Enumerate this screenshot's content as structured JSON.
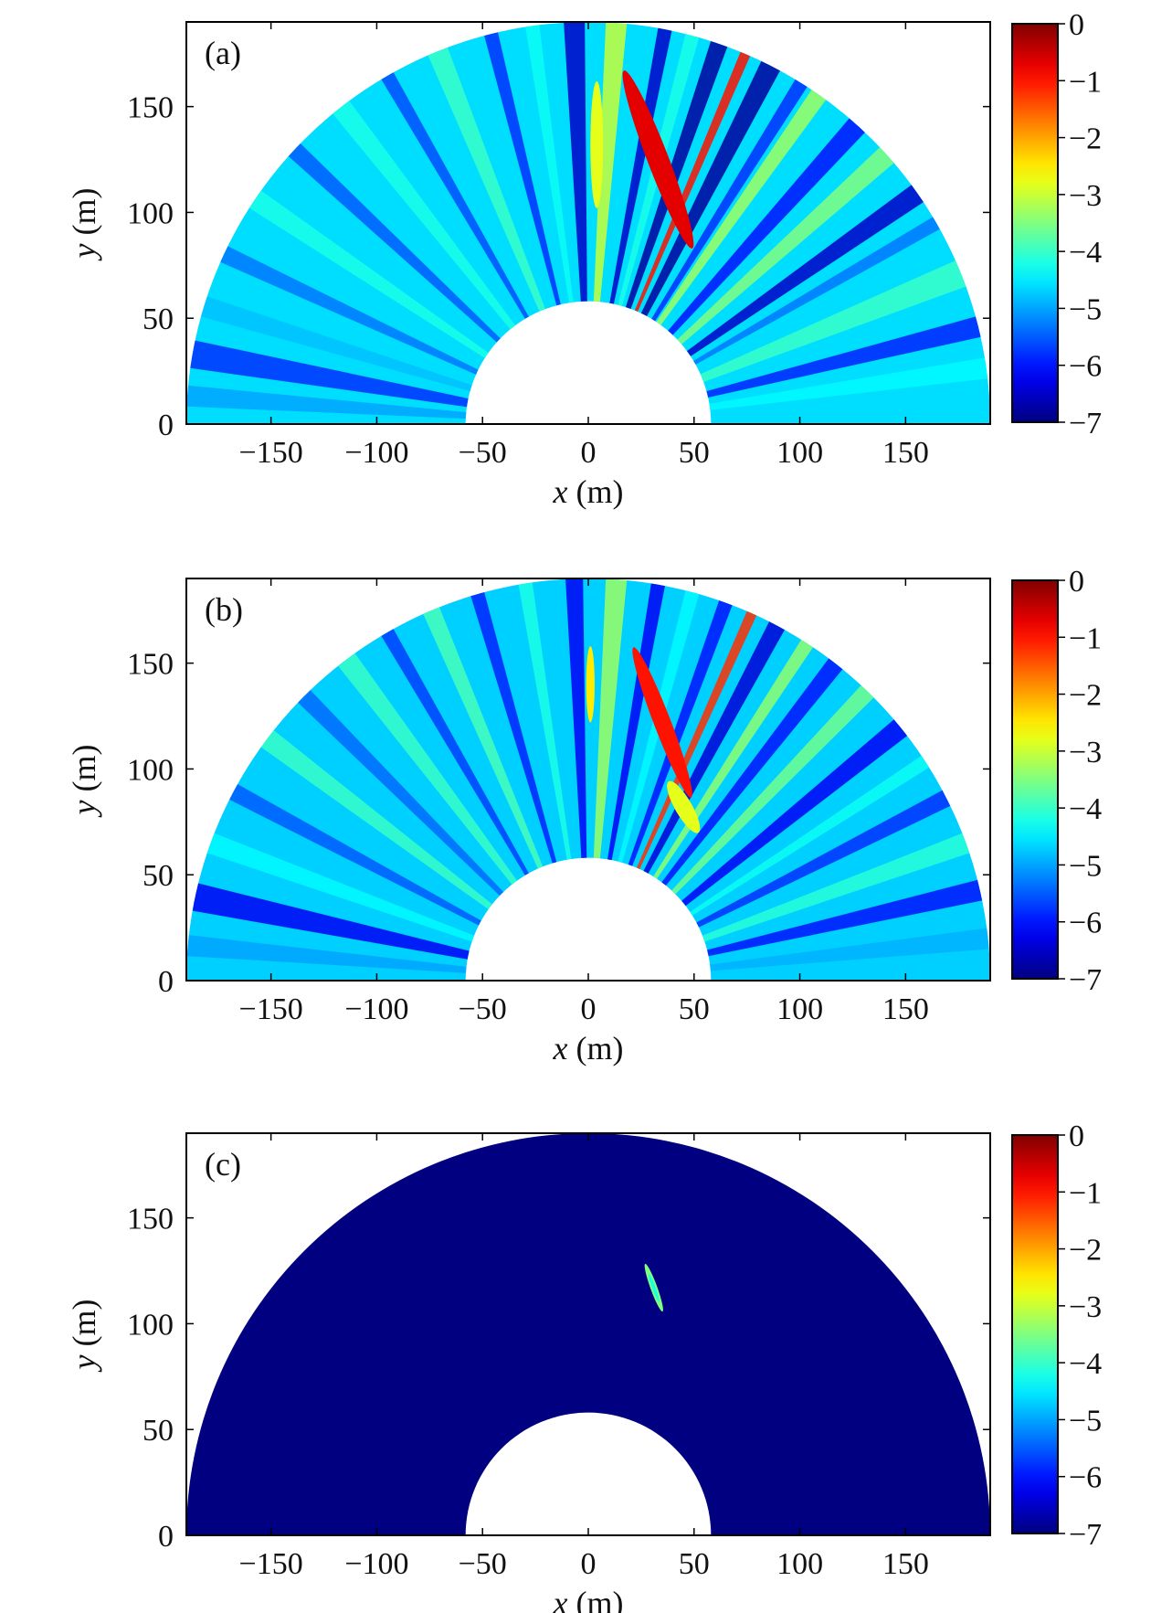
{
  "chart_data": [
    {
      "type": "heatmap",
      "panel_label": "(a)",
      "xlabel_var": "x",
      "xlabel_unit": " (m)",
      "ylabel_var": "y",
      "ylabel_unit": " (m)",
      "xlim": [
        -190,
        190
      ],
      "ylim": [
        0,
        190
      ],
      "x_ticks": [
        -150,
        -100,
        -50,
        0,
        50,
        100,
        150
      ],
      "y_ticks": [
        0,
        50,
        100,
        150
      ],
      "inner_radius": 58,
      "outer_radius": 190,
      "colorbar": {
        "ticks": [
          0,
          -1,
          -2,
          -3,
          -4,
          -5,
          -6,
          -7
        ],
        "range": [
          -7,
          0
        ]
      },
      "background_level": -4.6,
      "rays": [
        {
          "angle": 8,
          "value": -4.4,
          "width": 3
        },
        {
          "angle": 14,
          "value": -5.9,
          "width": 3
        },
        {
          "angle": 22,
          "value": -4.0,
          "width": 4
        },
        {
          "angle": 30,
          "value": -5.3,
          "width": 2
        },
        {
          "angle": 35,
          "value": -6.5,
          "width": 3
        },
        {
          "angle": 42,
          "value": -3.5,
          "width": 3
        },
        {
          "angle": 48,
          "value": -6.0,
          "width": 3
        },
        {
          "angle": 55,
          "value": -3.3,
          "width": 2.5
        },
        {
          "angle": 58,
          "value": -5.8,
          "width": 2
        },
        {
          "angle": 63,
          "value": -6.8,
          "width": 3
        },
        {
          "angle": 67,
          "value": -1.0,
          "width": 1.5
        },
        {
          "angle": 71,
          "value": -6.8,
          "width": 2.5
        },
        {
          "angle": 75,
          "value": -4.2,
          "width": 2
        },
        {
          "angle": 79,
          "value": -6.5,
          "width": 2
        },
        {
          "angle": 86,
          "value": -3.0,
          "width": 3
        },
        {
          "angle": 92,
          "value": -6.5,
          "width": 3
        },
        {
          "angle": 98,
          "value": -4.3,
          "width": 2
        },
        {
          "angle": 104,
          "value": -5.8,
          "width": 2
        },
        {
          "angle": 112,
          "value": -4.0,
          "width": 3
        },
        {
          "angle": 120,
          "value": -5.6,
          "width": 2
        },
        {
          "angle": 128,
          "value": -4.2,
          "width": 3
        },
        {
          "angle": 137,
          "value": -5.5,
          "width": 2.5
        },
        {
          "angle": 146,
          "value": -4.2,
          "width": 3
        },
        {
          "angle": 155,
          "value": -5.3,
          "width": 2.5
        },
        {
          "angle": 163,
          "value": -4.8,
          "width": 3
        },
        {
          "angle": 170,
          "value": -5.8,
          "width": 4
        },
        {
          "angle": 176,
          "value": -5.0,
          "width": 3
        }
      ],
      "hotspots": [
        {
          "x": 33,
          "y": 125,
          "rx": 5,
          "ry": 45,
          "rotate": -21,
          "value": -0.7
        },
        {
          "x": 4,
          "y": 132,
          "rx": 3,
          "ry": 30,
          "rotate": 0,
          "value": -2.8
        }
      ]
    },
    {
      "type": "heatmap",
      "panel_label": "(b)",
      "xlabel_var": "x",
      "xlabel_unit": " (m)",
      "ylabel_var": "y",
      "ylabel_unit": " (m)",
      "xlim": [
        -190,
        190
      ],
      "ylim": [
        0,
        190
      ],
      "x_ticks": [
        -150,
        -100,
        -50,
        0,
        50,
        100,
        150
      ],
      "y_ticks": [
        0,
        50,
        100,
        150
      ],
      "inner_radius": 58,
      "outer_radius": 190,
      "colorbar": {
        "ticks": [
          0,
          -1,
          -2,
          -3,
          -4,
          -5,
          -6,
          -7
        ],
        "range": [
          -7,
          0
        ]
      },
      "background_level": -4.7,
      "rays": [
        {
          "angle": 6,
          "value": -4.9,
          "width": 3
        },
        {
          "angle": 13,
          "value": -6.0,
          "width": 3
        },
        {
          "angle": 20,
          "value": -4.1,
          "width": 3
        },
        {
          "angle": 27,
          "value": -5.8,
          "width": 2.5
        },
        {
          "angle": 33,
          "value": -4.3,
          "width": 2
        },
        {
          "angle": 39,
          "value": -6.2,
          "width": 3
        },
        {
          "angle": 46,
          "value": -3.6,
          "width": 2.5
        },
        {
          "angle": 52,
          "value": -6.0,
          "width": 2.5
        },
        {
          "angle": 57,
          "value": -3.4,
          "width": 2
        },
        {
          "angle": 62,
          "value": -6.4,
          "width": 2.5
        },
        {
          "angle": 66,
          "value": -1.2,
          "width": 1.5
        },
        {
          "angle": 70,
          "value": -6.0,
          "width": 2
        },
        {
          "angle": 75,
          "value": -4.4,
          "width": 2
        },
        {
          "angle": 80,
          "value": -6.2,
          "width": 2
        },
        {
          "angle": 86,
          "value": -3.3,
          "width": 3
        },
        {
          "angle": 92,
          "value": -6.2,
          "width": 2.5
        },
        {
          "angle": 99,
          "value": -4.2,
          "width": 2
        },
        {
          "angle": 106,
          "value": -5.9,
          "width": 2
        },
        {
          "angle": 113,
          "value": -3.9,
          "width": 2.5
        },
        {
          "angle": 120,
          "value": -5.7,
          "width": 2
        },
        {
          "angle": 127,
          "value": -4.0,
          "width": 3
        },
        {
          "angle": 135,
          "value": -5.4,
          "width": 2.5
        },
        {
          "angle": 143,
          "value": -4.0,
          "width": 3
        },
        {
          "angle": 152,
          "value": -5.5,
          "width": 2.5
        },
        {
          "angle": 160,
          "value": -4.4,
          "width": 3
        },
        {
          "angle": 168,
          "value": -6.2,
          "width": 4
        },
        {
          "angle": 175,
          "value": -5.0,
          "width": 3
        }
      ],
      "hotspots": [
        {
          "x": 35,
          "y": 122,
          "rx": 4,
          "ry": 38,
          "rotate": -21,
          "value": -1.0
        },
        {
          "x": 45,
          "y": 82,
          "rx": 4,
          "ry": 14,
          "rotate": -30,
          "value": -2.8
        },
        {
          "x": 1,
          "y": 140,
          "rx": 2,
          "ry": 18,
          "rotate": 0,
          "value": -2.5
        }
      ]
    },
    {
      "type": "heatmap",
      "panel_label": "(c)",
      "xlabel_var": "x",
      "xlabel_unit": " (m)",
      "ylabel_var": "y",
      "ylabel_unit": " (m)",
      "xlim": [
        -190,
        190
      ],
      "ylim": [
        0,
        190
      ],
      "x_ticks": [
        -150,
        -100,
        -50,
        0,
        50,
        100,
        150
      ],
      "y_ticks": [
        0,
        50,
        100,
        150
      ],
      "inner_radius": 58,
      "outer_radius": 190,
      "colorbar": {
        "ticks": [
          0,
          -1,
          -2,
          -3,
          -4,
          -5,
          -6,
          -7
        ],
        "range": [
          -7,
          0
        ]
      },
      "background_level": -7,
      "rays": [],
      "hotspots": [
        {
          "x": 31,
          "y": 117,
          "rx": 1.6,
          "ry": 12,
          "rotate": -20,
          "value": -3.5
        },
        {
          "x": 31,
          "y": 117,
          "rx": 0.8,
          "ry": 7,
          "rotate": -20,
          "value": -4.2
        }
      ]
    }
  ]
}
